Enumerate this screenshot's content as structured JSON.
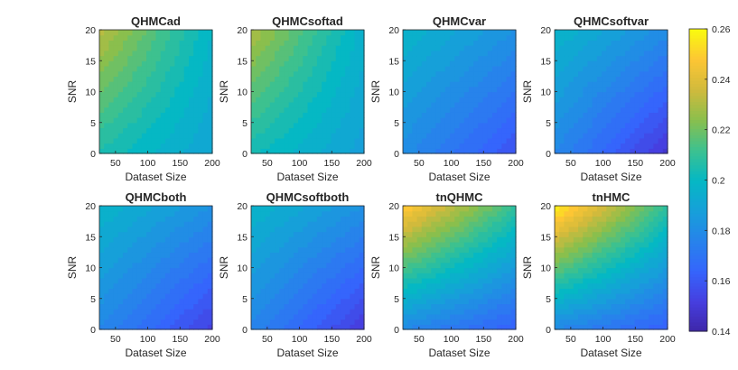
{
  "figure": {
    "colormap": "parula",
    "colorbar": {
      "range": [
        0.14,
        0.26
      ],
      "ticks": [
        "0.26",
        "0.24",
        "0.22",
        "0.2",
        "0.18",
        "0.16",
        "0.14"
      ]
    }
  },
  "chart_data": [
    {
      "type": "heatmap",
      "title": "QHMCad",
      "xlabel": "Dataset Size",
      "ylabel": "SNR",
      "xlim": [
        25,
        200
      ],
      "ylim": [
        0,
        20
      ],
      "xticks": [
        "50",
        "100",
        "150",
        "200"
      ],
      "yticks": [
        "0",
        "5",
        "10",
        "15",
        "20"
      ],
      "x": [
        25,
        200
      ],
      "y": [
        0,
        20
      ],
      "z": [
        [
          0.205,
          0.19
        ],
        [
          0.232,
          0.198
        ]
      ]
    },
    {
      "type": "heatmap",
      "title": "QHMCsoftad",
      "xlabel": "Dataset Size",
      "ylabel": "SNR",
      "xlim": [
        25,
        200
      ],
      "ylim": [
        0,
        20
      ],
      "xticks": [
        "50",
        "100",
        "150",
        "200"
      ],
      "yticks": [
        "0",
        "5",
        "10",
        "15",
        "20"
      ],
      "x": [
        25,
        200
      ],
      "y": [
        0,
        20
      ],
      "z": [
        [
          0.203,
          0.188
        ],
        [
          0.23,
          0.196
        ]
      ]
    },
    {
      "type": "heatmap",
      "title": "QHMCvar",
      "xlabel": "Dataset Size",
      "ylabel": "SNR",
      "xlim": [
        25,
        200
      ],
      "ylim": [
        0,
        20
      ],
      "xticks": [
        "50",
        "100",
        "150",
        "200"
      ],
      "yticks": [
        "0",
        "5",
        "10",
        "15",
        "20"
      ],
      "x": [
        25,
        200
      ],
      "y": [
        0,
        20
      ],
      "z": [
        [
          0.18,
          0.158
        ],
        [
          0.198,
          0.182
        ]
      ]
    },
    {
      "type": "heatmap",
      "title": "QHMCsoftvar",
      "xlabel": "Dataset Size",
      "ylabel": "SNR",
      "xlim": [
        25,
        200
      ],
      "ylim": [
        0,
        20
      ],
      "xticks": [
        "50",
        "100",
        "150",
        "200"
      ],
      "yticks": [
        "0",
        "5",
        "10",
        "15",
        "20"
      ],
      "x": [
        25,
        200
      ],
      "y": [
        0,
        20
      ],
      "z": [
        [
          0.178,
          0.148
        ],
        [
          0.198,
          0.18
        ]
      ]
    },
    {
      "type": "heatmap",
      "title": "QHMCboth",
      "xlabel": "Dataset Size",
      "ylabel": "SNR",
      "xlim": [
        25,
        200
      ],
      "ylim": [
        0,
        20
      ],
      "xticks": [
        "50",
        "100",
        "150",
        "200"
      ],
      "yticks": [
        "0",
        "5",
        "10",
        "15",
        "20"
      ],
      "x": [
        25,
        200
      ],
      "y": [
        0,
        20
      ],
      "z": [
        [
          0.178,
          0.152
        ],
        [
          0.198,
          0.182
        ]
      ]
    },
    {
      "type": "heatmap",
      "title": "QHMCsoftboth",
      "xlabel": "Dataset Size",
      "ylabel": "SNR",
      "xlim": [
        25,
        200
      ],
      "ylim": [
        0,
        20
      ],
      "xticks": [
        "50",
        "100",
        "150",
        "200"
      ],
      "yticks": [
        "0",
        "5",
        "10",
        "15",
        "20"
      ],
      "x": [
        25,
        200
      ],
      "y": [
        0,
        20
      ],
      "z": [
        [
          0.177,
          0.15
        ],
        [
          0.198,
          0.182
        ]
      ]
    },
    {
      "type": "heatmap",
      "title": "tnQHMC",
      "xlabel": "Dataset Size",
      "ylabel": "SNR",
      "xlim": [
        25,
        200
      ],
      "ylim": [
        0,
        20
      ],
      "xticks": [
        "50",
        "100",
        "150",
        "200"
      ],
      "yticks": [
        "0",
        "5",
        "10",
        "15",
        "20"
      ],
      "x": [
        25,
        200
      ],
      "y": [
        0,
        20
      ],
      "z": [
        [
          0.178,
          0.162
        ],
        [
          0.25,
          0.21
        ]
      ]
    },
    {
      "type": "heatmap",
      "title": "tnHMC",
      "xlabel": "Dataset Size",
      "ylabel": "SNR",
      "xlim": [
        25,
        200
      ],
      "ylim": [
        0,
        20
      ],
      "xticks": [
        "50",
        "100",
        "150",
        "200"
      ],
      "yticks": [
        "0",
        "5",
        "10",
        "15",
        "20"
      ],
      "x": [
        25,
        200
      ],
      "y": [
        0,
        20
      ],
      "z": [
        [
          0.178,
          0.162
        ],
        [
          0.258,
          0.21
        ]
      ]
    }
  ]
}
